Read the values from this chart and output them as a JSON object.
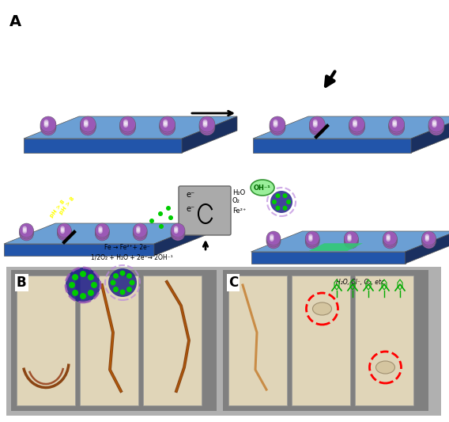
{
  "panel_A_label": "A",
  "panel_B_label": "B",
  "panel_C_label": "C",
  "bg_color": "#ffffff",
  "arrow_color": "#000000",
  "plate_top_color": "#6b9fd4",
  "plate_side_color": "#2255aa",
  "plate_bottom_color": "#1a3060",
  "sphere_color": "#9b59b6",
  "sphere_highlight": "#c39bd3",
  "green_patch_color": "#2ecc71",
  "gray_box_color": "#aaaaaa",
  "oh_bubble_color": "#90ee90",
  "red_circle_color": "#ff0000",
  "fig_bg": "#e8e8e8",
  "rust_color": "#8B4513",
  "panel_bg": "#909090",
  "blister_color": "#d4c5a0",
  "label_fontsize": 14,
  "small_fontsize": 7,
  "text_color": "#000000",
  "green_text": "#00aa00",
  "yellow_text": "#ffff00"
}
